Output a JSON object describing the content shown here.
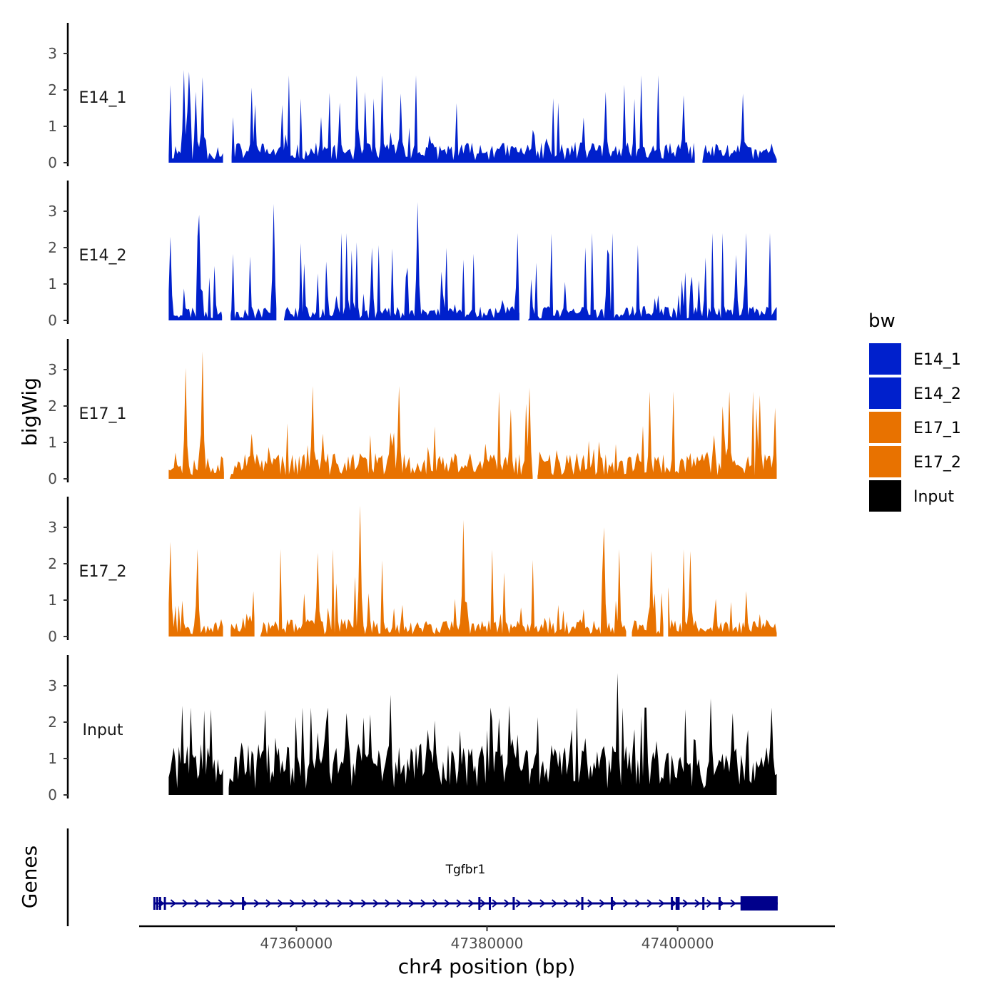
{
  "chart_data": {
    "type": "area",
    "title": "",
    "ylabel": "bigWig",
    "xlabel": "chr4 position (bp)",
    "genes_label": "Genes",
    "xlim": [
      47343500,
      47416500
    ],
    "x_ticks": [
      {
        "value": 47360000,
        "label": "47360000"
      },
      {
        "value": 47380000,
        "label": "47380000"
      },
      {
        "value": 47400000,
        "label": "47400000"
      }
    ],
    "ylim": [
      0,
      3.8
    ],
    "y_ticks": [
      {
        "value": 0,
        "label": "0"
      },
      {
        "value": 1,
        "label": "1"
      },
      {
        "value": 2,
        "label": "2"
      },
      {
        "value": 3,
        "label": "3"
      }
    ],
    "data_range": [
      47346600,
      47410400
    ],
    "series": [
      {
        "name": "E14_1",
        "label": "E14_1",
        "color": "#0020cc",
        "seed": 11,
        "base": 0.35,
        "peak_prob": 0.13,
        "peak_scale": 1.3,
        "gaps": [
          [
            47352300,
            47353200
          ],
          [
            47401800,
            47402600
          ]
        ],
        "peaks": [
          [
            47348200,
            2.55
          ],
          [
            47348700,
            2.5
          ],
          [
            47350200,
            2.35
          ],
          [
            47349400,
            1.95
          ],
          [
            47355700,
            1.6
          ],
          [
            47364500,
            1.65
          ],
          [
            47371000,
            1.9
          ],
          [
            47392500,
            1.95
          ],
          [
            47406900,
            1.9
          ],
          [
            47400700,
            1.85
          ]
        ]
      },
      {
        "name": "E14_2",
        "label": "E14_2",
        "color": "#0020cc",
        "seed": 23,
        "base": 0.25,
        "peak_prob": 0.15,
        "peak_scale": 1.5,
        "gaps": [
          [
            47352200,
            47353100
          ],
          [
            47357900,
            47358700
          ],
          [
            47383400,
            47384300
          ]
        ],
        "peaks": [
          [
            47346700,
            2.3
          ],
          [
            47349800,
            2.9
          ],
          [
            47357600,
            3.2
          ],
          [
            47372800,
            3.25
          ],
          [
            47367900,
            2.0
          ],
          [
            47392700,
            1.95
          ],
          [
            47406100,
            1.8
          ]
        ]
      },
      {
        "name": "E17_1",
        "label": "E17_1",
        "color": "#e87200",
        "seed": 37,
        "base": 0.45,
        "peak_prob": 0.13,
        "peak_scale": 1.4,
        "gaps": [
          [
            47352400,
            47353000
          ],
          [
            47384800,
            47385300
          ]
        ],
        "peaks": [
          [
            47348300,
            3.05
          ],
          [
            47350200,
            3.5
          ],
          [
            47361700,
            2.55
          ],
          [
            47370700,
            2.55
          ],
          [
            47384500,
            2.5
          ],
          [
            47405500,
            2.4
          ],
          [
            47408700,
            2.3
          ]
        ]
      },
      {
        "name": "E17_2",
        "label": "E17_2",
        "color": "#e87200",
        "seed": 53,
        "base": 0.3,
        "peak_prob": 0.14,
        "peak_scale": 1.4,
        "gaps": [
          [
            47352300,
            47353100
          ],
          [
            47355600,
            47356200
          ],
          [
            47394600,
            47395200
          ],
          [
            47398500,
            47399000
          ]
        ],
        "peaks": [
          [
            47346700,
            2.6
          ],
          [
            47349700,
            2.4
          ],
          [
            47362300,
            2.3
          ],
          [
            47366600,
            3.6
          ],
          [
            47377500,
            3.2
          ],
          [
            47392300,
            3.0
          ],
          [
            47397300,
            2.35
          ],
          [
            47401400,
            2.35
          ]
        ]
      },
      {
        "name": "Input",
        "label": "Input",
        "color": "#000000",
        "seed": 71,
        "base": 0.85,
        "peak_prob": 0.22,
        "peak_scale": 1.1,
        "gaps": [
          [
            47352300,
            47352900
          ]
        ],
        "peaks": [
          [
            47348100,
            2.45
          ],
          [
            47351000,
            2.35
          ],
          [
            47365200,
            2.25
          ],
          [
            47369800,
            2.75
          ],
          [
            47382400,
            2.45
          ],
          [
            47393700,
            3.35
          ],
          [
            47403400,
            2.65
          ],
          [
            47405800,
            2.25
          ]
        ]
      }
    ],
    "legend": {
      "title": "bw",
      "position": "right"
    },
    "genes": [
      {
        "name": "Tgfbr1",
        "strand": "+",
        "start": 47345000,
        "end": 47410500,
        "thick_start": 47406600,
        "thick_end": 47410500,
        "exons": [
          47345100,
          47345400,
          47345700,
          47346200,
          47354400,
          47379200,
          47380300,
          47382800,
          47390000,
          47393100,
          47399400,
          47399900,
          47400100,
          47402700,
          47404400
        ]
      }
    ]
  }
}
